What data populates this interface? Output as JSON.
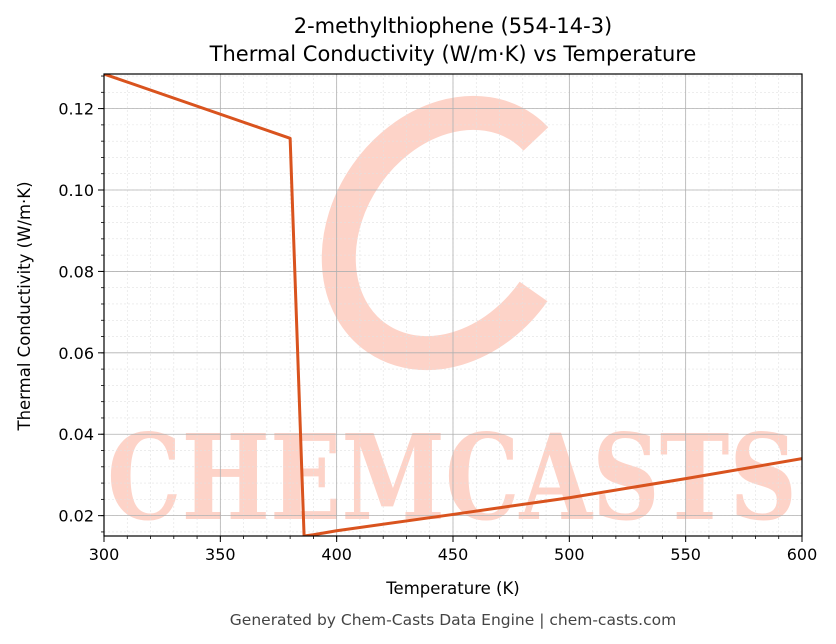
{
  "chart_data": {
    "type": "line",
    "title": "2-methylthiophene (554-14-3)",
    "subtitle": "Thermal Conductivity (W/m·K) vs Temperature",
    "xlabel": "Temperature (K)",
    "ylabel": "Thermal Conductivity (W/m·K)",
    "xlim": [
      300,
      600
    ],
    "ylim": [
      0.015,
      0.1285
    ],
    "x_ticks": [
      300,
      350,
      400,
      450,
      500,
      550,
      600
    ],
    "x_tick_labels": [
      "300",
      "350",
      "400",
      "450",
      "500",
      "550",
      "600"
    ],
    "y_ticks": [
      0.02,
      0.04,
      0.06,
      0.08,
      0.1,
      0.12
    ],
    "y_tick_labels": [
      "0.02",
      "0.04",
      "0.06",
      "0.08",
      "0.10",
      "0.12"
    ],
    "grid": true,
    "legend": "none",
    "series": [
      {
        "color": "#d9531e",
        "x": [
          300,
          380,
          386,
          390,
          400,
          450,
          500,
          550,
          600
        ],
        "y": [
          0.1285,
          0.1127,
          0.015,
          0.0153,
          0.0163,
          0.0203,
          0.0244,
          0.0291,
          0.034
        ]
      }
    ]
  },
  "watermark": {
    "text": "CHEMCASTS",
    "color": "#fdd3c8"
  },
  "footer": "Generated by Chem-Casts Data Engine | chem-casts.com"
}
